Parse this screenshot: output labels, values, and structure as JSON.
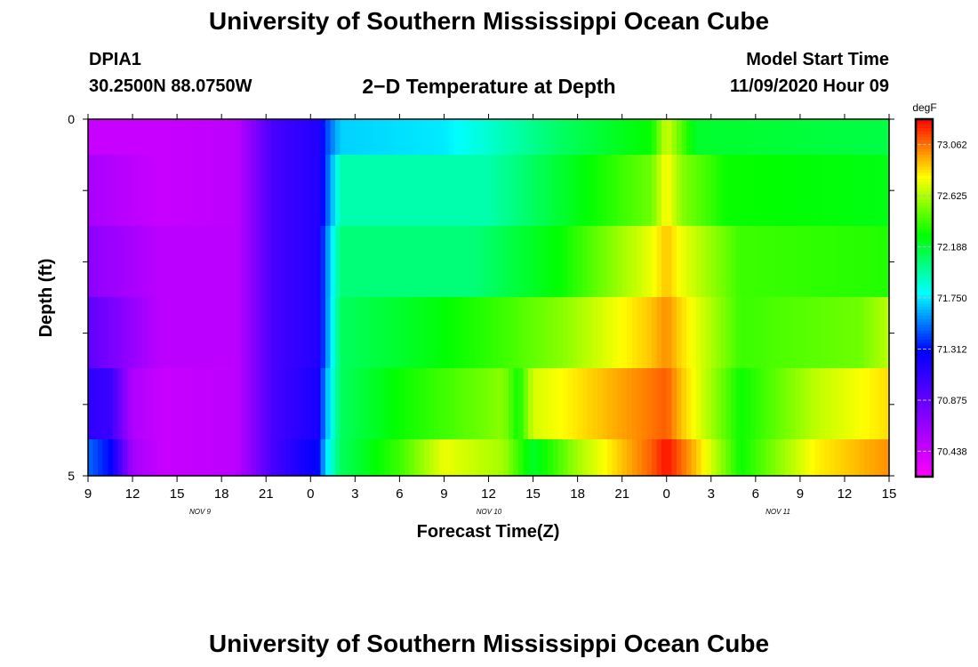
{
  "header": {
    "title": "University of Southern Mississippi Ocean Cube",
    "station_id": "DPIA1",
    "position": "30.2500N 88.0750W",
    "plot_title": "2−D Temperature at Depth",
    "model_label": "Model Start Time",
    "model_time": "11/09/2020 Hour 09"
  },
  "footer": {
    "title": "University of Southern Mississippi Ocean Cube"
  },
  "chart_data": {
    "type": "heatmap",
    "xlabel": "Forecast Time(Z)",
    "ylabel": "Depth (ft)",
    "x_ticks": [
      "9",
      "12",
      "15",
      "18",
      "21",
      "0",
      "3",
      "6",
      "9",
      "12",
      "15",
      "18",
      "21",
      "0",
      "3",
      "6",
      "9",
      "12",
      "15"
    ],
    "date_labels": [
      "NOV 9",
      "NOV 10",
      "NOV 11"
    ],
    "y_tick_labels": [
      "0",
      "5"
    ],
    "ylim": [
      0,
      5
    ],
    "x_start_hour": 9,
    "x_hours": 54,
    "colorbar": {
      "unit": "degF",
      "min": 70.22,
      "max": 73.28,
      "labels": [
        "73.062",
        "72.625",
        "72.188",
        "71.750",
        "71.312",
        "70.875",
        "70.438"
      ]
    },
    "rows": [
      {
        "depth": "0-0.5 ft",
        "keys": [
          [
            0,
            70.45
          ],
          [
            5,
            70.45
          ],
          [
            10,
            70.5
          ],
          [
            12.5,
            71.0
          ],
          [
            15.5,
            71.15
          ],
          [
            16,
            71.4
          ],
          [
            17,
            71.7
          ],
          [
            24,
            71.75
          ],
          [
            32,
            72.1
          ],
          [
            38,
            72.3
          ],
          [
            39,
            72.7
          ],
          [
            40,
            72.45
          ],
          [
            41,
            72.2
          ],
          [
            54,
            72.15
          ]
        ]
      },
      {
        "depth": "0.5-1.5 ft",
        "keys": [
          [
            0,
            70.58
          ],
          [
            5,
            70.45
          ],
          [
            10,
            70.5
          ],
          [
            12.5,
            71.0
          ],
          [
            15.5,
            71.15
          ],
          [
            16,
            71.4
          ],
          [
            17,
            71.95
          ],
          [
            27,
            71.95
          ],
          [
            32,
            72.2
          ],
          [
            38,
            72.5
          ],
          [
            39,
            72.8
          ],
          [
            40,
            72.55
          ],
          [
            43,
            72.3
          ],
          [
            54,
            72.25
          ]
        ]
      },
      {
        "depth": "1.5-2.5 ft",
        "keys": [
          [
            0,
            70.7
          ],
          [
            5,
            70.5
          ],
          [
            10,
            70.5
          ],
          [
            12.5,
            71.0
          ],
          [
            15.5,
            71.15
          ],
          [
            16,
            71.5
          ],
          [
            17,
            72.05
          ],
          [
            26,
            72.05
          ],
          [
            32,
            72.3
          ],
          [
            38,
            72.75
          ],
          [
            39,
            72.9
          ],
          [
            40,
            72.75
          ],
          [
            44,
            72.4
          ],
          [
            54,
            72.35
          ]
        ]
      },
      {
        "depth": "2.5-3.5 ft",
        "keys": [
          [
            0,
            70.9
          ],
          [
            5,
            70.5
          ],
          [
            10,
            70.5
          ],
          [
            12.5,
            71.0
          ],
          [
            15.5,
            71.15
          ],
          [
            16,
            71.5
          ],
          [
            17,
            72.1
          ],
          [
            23,
            72.25
          ],
          [
            28,
            72.4
          ],
          [
            32,
            72.55
          ],
          [
            38,
            72.9
          ],
          [
            39,
            73.0
          ],
          [
            40,
            72.85
          ],
          [
            44,
            72.4
          ],
          [
            52,
            72.5
          ],
          [
            54,
            72.65
          ]
        ]
      },
      {
        "depth": "3.5-4.5 ft",
        "keys": [
          [
            0,
            71.1
          ],
          [
            1.5,
            71.05
          ],
          [
            3,
            70.55
          ],
          [
            5,
            70.45
          ],
          [
            10,
            70.5
          ],
          [
            12.5,
            71.0
          ],
          [
            15.5,
            71.2
          ],
          [
            16,
            71.6
          ],
          [
            17,
            72.1
          ],
          [
            21,
            72.3
          ],
          [
            28,
            72.55
          ],
          [
            29,
            72.3
          ],
          [
            30,
            72.7
          ],
          [
            38,
            73.05
          ],
          [
            39,
            73.1
          ],
          [
            40,
            72.9
          ],
          [
            44,
            72.3
          ],
          [
            49,
            72.65
          ],
          [
            54,
            72.85
          ]
        ]
      },
      {
        "depth": "4.5-5 ft",
        "keys": [
          [
            0,
            71.5
          ],
          [
            1.5,
            71.3
          ],
          [
            3,
            70.6
          ],
          [
            5,
            70.45
          ],
          [
            10,
            70.5
          ],
          [
            12.5,
            71.0
          ],
          [
            15.5,
            71.3
          ],
          [
            16,
            71.7
          ],
          [
            17,
            72.1
          ],
          [
            21,
            72.4
          ],
          [
            24,
            72.75
          ],
          [
            28,
            72.6
          ],
          [
            30,
            72.2
          ],
          [
            33,
            72.6
          ],
          [
            38,
            73.1
          ],
          [
            39,
            73.25
          ],
          [
            41,
            72.9
          ],
          [
            44,
            72.3
          ],
          [
            49,
            72.8
          ],
          [
            54,
            73.0
          ]
        ]
      }
    ]
  }
}
